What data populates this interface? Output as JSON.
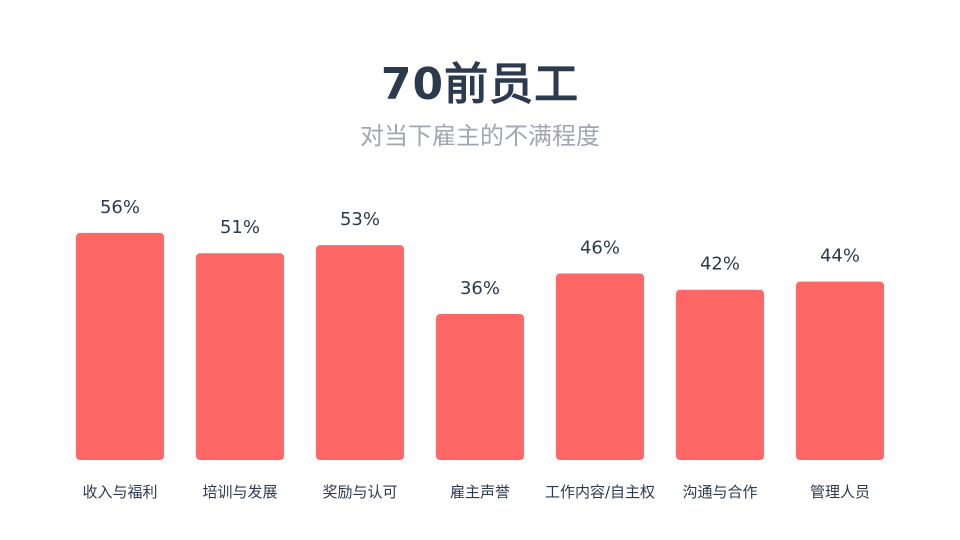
{
  "chart_data": {
    "type": "bar",
    "title": "70前员工",
    "subtitle": "对当下雇主的不满程度",
    "categories": [
      "收入与福利",
      "培训与发展",
      "奖励与认可",
      "雇主声誉",
      "工作内容/自主权",
      "沟通与合作",
      "管理人员"
    ],
    "values": [
      56,
      51,
      53,
      36,
      46,
      42,
      44
    ],
    "value_labels": [
      "56%",
      "51%",
      "53%",
      "36%",
      "46%",
      "42%",
      "44%"
    ],
    "ylim": [
      0,
      100
    ],
    "grid": false,
    "bar_color": "#ff6666"
  }
}
